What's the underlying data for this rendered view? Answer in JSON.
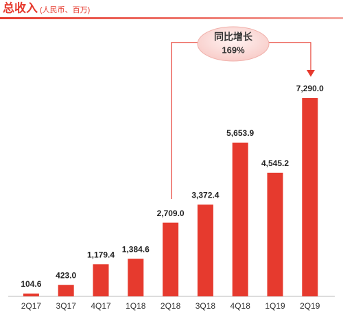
{
  "chart_data": {
    "type": "bar",
    "title": "总收入",
    "subtitle": "(人民币、百万)",
    "categories": [
      "2Q17",
      "3Q17",
      "4Q17",
      "1Q18",
      "2Q18",
      "3Q18",
      "4Q18",
      "1Q19",
      "2Q19"
    ],
    "values": [
      104.6,
      423.0,
      1179.4,
      1384.6,
      2709.0,
      3372.4,
      5653.9,
      4545.2,
      7290.0
    ],
    "value_labels": [
      "104.6",
      "423.0",
      "1,179.4",
      "1,384.6",
      "2,709.0",
      "3,372.4",
      "5,653.9",
      "4,545.2",
      "7,290.0"
    ],
    "color": "#e63a2e",
    "annotation": {
      "text": "同比增长",
      "value_text": "169%"
    }
  }
}
